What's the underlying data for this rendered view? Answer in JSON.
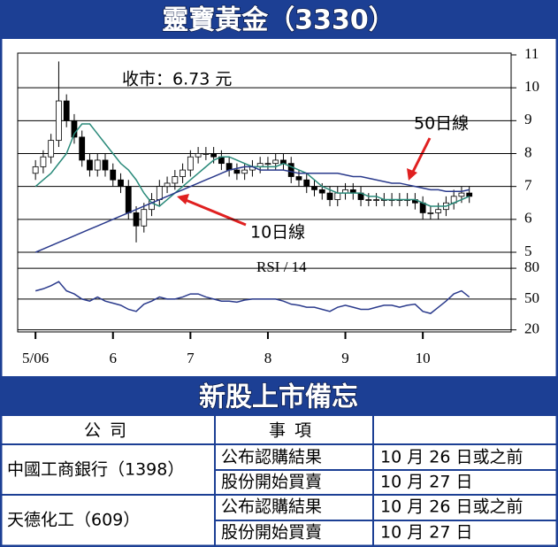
{
  "chart_data": {
    "type": "candlestick",
    "title": "靈寶黃金（3330）",
    "close_label": "收市：6.73 元",
    "rsi_label": "RSI / 14",
    "xlim": [
      4.77,
      11.14
    ],
    "xticks": [
      {
        "value": 5,
        "label": "5/06"
      },
      6,
      7,
      8,
      9,
      10
    ],
    "ylim": [
      5,
      11
    ],
    "yticks": [
      5,
      6,
      7,
      8,
      9,
      10,
      11
    ],
    "x": [
      5.0,
      5.1,
      5.2,
      5.3,
      5.4,
      5.5,
      5.6,
      5.7,
      5.8,
      5.9,
      6.0,
      6.1,
      6.2,
      6.3,
      6.4,
      6.5,
      6.6,
      6.7,
      6.8,
      6.9,
      7.0,
      7.1,
      7.2,
      7.3,
      7.4,
      7.5,
      7.6,
      7.7,
      7.8,
      7.9,
      8.0,
      8.1,
      8.2,
      8.3,
      8.4,
      8.5,
      8.6,
      8.7,
      8.8,
      8.9,
      9.0,
      9.1,
      9.2,
      9.3,
      9.4,
      9.5,
      9.6,
      9.7,
      9.8,
      9.9,
      10.0,
      10.1,
      10.2,
      10.3,
      10.4,
      10.5,
      10.6
    ],
    "open": [
      7.4,
      7.6,
      7.9,
      8.4,
      9.6,
      9.0,
      8.5,
      7.8,
      7.5,
      7.8,
      7.5,
      7.2,
      7.0,
      6.2,
      5.8,
      6.3,
      6.6,
      7.0,
      7.1,
      7.3,
      7.5,
      7.9,
      8.0,
      8.0,
      7.9,
      7.7,
      7.5,
      7.4,
      7.5,
      7.6,
      7.7,
      7.7,
      7.8,
      7.7,
      7.3,
      7.2,
      7.0,
      6.9,
      6.8,
      6.6,
      6.8,
      6.9,
      6.8,
      6.6,
      6.6,
      6.6,
      6.6,
      6.6,
      6.6,
      6.6,
      6.5,
      6.2,
      6.2,
      6.3,
      6.5,
      6.7,
      6.8
    ],
    "high": [
      7.8,
      8.1,
      8.6,
      10.8,
      9.8,
      9.2,
      8.7,
      8.0,
      8.0,
      8.0,
      7.7,
      7.4,
      7.2,
      6.4,
      6.5,
      6.8,
      7.2,
      7.3,
      7.5,
      7.7,
      8.1,
      8.2,
      8.2,
      8.2,
      8.1,
      7.9,
      7.7,
      7.7,
      7.8,
      7.9,
      7.9,
      8.0,
      8.0,
      7.9,
      7.5,
      7.4,
      7.2,
      7.1,
      7.0,
      7.0,
      7.1,
      7.1,
      7.0,
      6.8,
      6.8,
      6.8,
      6.8,
      6.8,
      6.8,
      6.8,
      6.7,
      6.4,
      6.5,
      6.7,
      6.9,
      7.0,
      7.0
    ],
    "low": [
      7.2,
      7.4,
      7.7,
      8.2,
      8.8,
      8.3,
      7.6,
      7.3,
      7.3,
      7.3,
      7.0,
      6.8,
      6.0,
      5.3,
      5.6,
      6.1,
      6.4,
      6.8,
      6.9,
      7.1,
      7.3,
      7.7,
      7.8,
      7.7,
      7.5,
      7.3,
      7.2,
      7.2,
      7.3,
      7.4,
      7.5,
      7.5,
      7.5,
      7.1,
      7.0,
      6.8,
      6.7,
      6.6,
      6.4,
      6.4,
      6.6,
      6.6,
      6.4,
      6.4,
      6.4,
      6.4,
      6.4,
      6.4,
      6.4,
      6.3,
      6.0,
      6.0,
      6.0,
      6.1,
      6.3,
      6.5,
      6.5
    ],
    "close": [
      7.6,
      7.9,
      8.4,
      9.6,
      9.0,
      8.5,
      7.8,
      7.5,
      7.8,
      7.5,
      7.2,
      7.0,
      6.2,
      5.8,
      6.3,
      6.6,
      7.0,
      7.1,
      7.3,
      7.5,
      7.9,
      8.0,
      8.0,
      7.9,
      7.7,
      7.5,
      7.4,
      7.5,
      7.6,
      7.7,
      7.7,
      7.8,
      7.7,
      7.3,
      7.2,
      7.0,
      6.9,
      6.8,
      6.6,
      6.8,
      6.9,
      6.8,
      6.6,
      6.6,
      6.6,
      6.6,
      6.6,
      6.6,
      6.6,
      6.5,
      6.2,
      6.2,
      6.3,
      6.5,
      6.7,
      6.8,
      6.7
    ],
    "series": [
      {
        "name": "10日線",
        "color": "#2a8a7a",
        "values": [
          7.0,
          7.2,
          7.4,
          7.7,
          8.0,
          8.6,
          8.9,
          8.9,
          8.6,
          8.3,
          8.0,
          7.7,
          7.5,
          7.2,
          6.8,
          6.5,
          6.4,
          6.6,
          6.8,
          7.0,
          7.2,
          7.4,
          7.6,
          7.8,
          7.9,
          7.9,
          7.8,
          7.7,
          7.6,
          7.6,
          7.6,
          7.6,
          7.7,
          7.6,
          7.5,
          7.4,
          7.2,
          7.0,
          6.9,
          6.8,
          6.8,
          6.8,
          6.8,
          6.7,
          6.7,
          6.6,
          6.6,
          6.6,
          6.6,
          6.6,
          6.5,
          6.4,
          6.4,
          6.4,
          6.5,
          6.6,
          6.7
        ]
      },
      {
        "name": "50日線",
        "color": "#2a3a8c",
        "values": [
          5.0,
          5.1,
          5.2,
          5.3,
          5.4,
          5.5,
          5.6,
          5.7,
          5.8,
          5.9,
          6.0,
          6.1,
          6.2,
          6.3,
          6.4,
          6.5,
          6.6,
          6.7,
          6.8,
          6.9,
          7.0,
          7.1,
          7.2,
          7.3,
          7.4,
          7.5,
          7.55,
          7.6,
          7.6,
          7.5,
          7.5,
          7.5,
          7.5,
          7.45,
          7.4,
          7.4,
          7.4,
          7.4,
          7.4,
          7.4,
          7.35,
          7.3,
          7.3,
          7.25,
          7.2,
          7.15,
          7.1,
          7.1,
          7.05,
          7.0,
          6.95,
          6.9,
          6.9,
          6.85,
          6.85,
          6.85,
          6.9
        ]
      }
    ],
    "rsi": {
      "color": "#2a3a8c",
      "ylim": [
        18,
        93
      ],
      "yticks": [
        20,
        50,
        80
      ],
      "values": [
        58,
        60,
        63,
        67,
        58,
        55,
        50,
        48,
        52,
        48,
        46,
        44,
        40,
        38,
        45,
        48,
        52,
        50,
        50,
        52,
        55,
        55,
        52,
        50,
        48,
        48,
        47,
        49,
        50,
        50,
        50,
        50,
        48,
        45,
        44,
        42,
        42,
        40,
        38,
        42,
        44,
        42,
        40,
        40,
        42,
        44,
        44,
        42,
        44,
        45,
        38,
        36,
        42,
        48,
        55,
        58,
        52
      ]
    },
    "grid": true
  },
  "table": {
    "title": "新股上市備忘",
    "header": [
      "公司",
      "事項"
    ],
    "rows": [
      {
        "company": "中國工商銀行（1398）",
        "items": [
          [
            "公布認購結果",
            "10 月 26 日或之前"
          ],
          [
            "股份開始買賣",
            "10 月 27 日"
          ]
        ]
      },
      {
        "company": "天德化工（609）",
        "items": [
          [
            "公布認購結果",
            "10 月 26 日或之前"
          ],
          [
            "股份開始買賣",
            "10 月 27 日"
          ]
        ]
      }
    ]
  }
}
